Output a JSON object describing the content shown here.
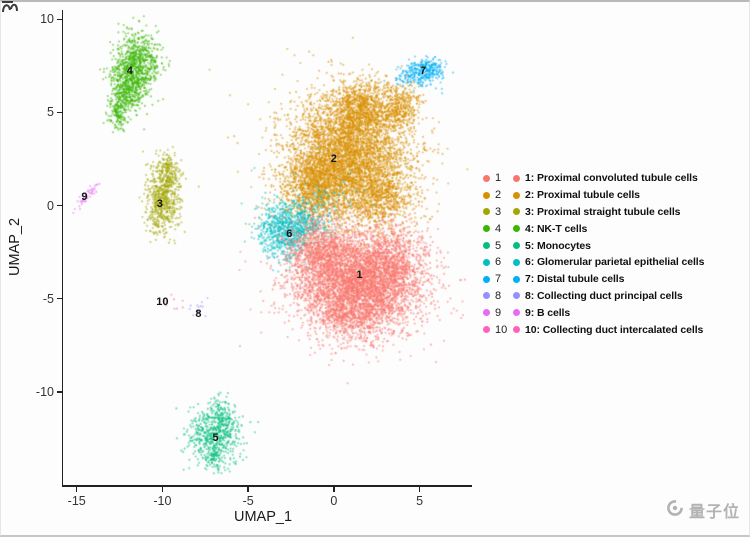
{
  "page": {
    "watermark": {
      "text": "量子位",
      "color": "#b3b3b3"
    }
  },
  "chart_data": {
    "type": "scatter",
    "title": "",
    "xlabel": "UMAP_1",
    "ylabel": "UMAP_2",
    "xlim": [
      -15.8,
      8.0
    ],
    "ylim": [
      -15.0,
      10.5
    ],
    "xticks": [
      -15,
      -10,
      -5,
      0,
      5
    ],
    "yticks": [
      10,
      5,
      0,
      -5,
      -10
    ],
    "grid": false,
    "legend_position": "right",
    "point_radius_px": 1.05,
    "point_alpha": 0.55,
    "axis_color": "#222222",
    "draw_order": [
      "2",
      "3",
      "4",
      "5",
      "7",
      "6",
      "1",
      "9",
      "8",
      "10"
    ],
    "clusters": [
      {
        "number": "1",
        "name": "Proximal convoluted tubule cells",
        "legend_label": "1: Proximal convoluted tubule cells",
        "color": "#F8766D",
        "label_pos": [
          1.5,
          -3.75
        ],
        "blobs": [
          {
            "x": 1.5,
            "y": -4.2,
            "sx": 1.8,
            "sy": 1.3,
            "n": 3800
          },
          {
            "x": -0.8,
            "y": -2.6,
            "sx": 1.0,
            "sy": 0.9,
            "n": 900
          },
          {
            "x": 3.3,
            "y": -3.0,
            "sx": 0.9,
            "sy": 1.0,
            "n": 700
          },
          {
            "x": 1.0,
            "y": -6.0,
            "sx": 1.2,
            "sy": 0.7,
            "n": 500
          },
          {
            "x": 1.3,
            "y": -4.0,
            "sx": 2.5,
            "sy": 1.8,
            "n": 450
          }
        ]
      },
      {
        "number": "2",
        "name": "Proximal tubule cells",
        "legend_label": "2: Proximal tubule cells",
        "color": "#D89000",
        "label_pos": [
          0.0,
          2.5
        ],
        "blobs": [
          {
            "x": 0.8,
            "y": 2.6,
            "sx": 1.7,
            "sy": 1.7,
            "n": 4200
          },
          {
            "x": -1.2,
            "y": 1.0,
            "sx": 0.9,
            "sy": 0.9,
            "n": 900
          },
          {
            "x": 1.6,
            "y": 5.3,
            "sx": 0.8,
            "sy": 0.7,
            "n": 700
          },
          {
            "x": 3.8,
            "y": 5.3,
            "sx": 0.6,
            "sy": 0.6,
            "n": 400
          },
          {
            "x": 2.8,
            "y": 0.3,
            "sx": 1.0,
            "sy": 0.8,
            "n": 600
          },
          {
            "x": 1.0,
            "y": 2.5,
            "sx": 2.4,
            "sy": 2.2,
            "n": 500
          }
        ]
      },
      {
        "number": "3",
        "name": "Proximal straight tubule cells",
        "legend_label": "3: Proximal straight tubule cells",
        "color": "#A3A500",
        "label_pos": [
          -10.15,
          0.1
        ],
        "blobs": [
          {
            "x": -10.0,
            "y": 0.3,
            "sx": 0.5,
            "sy": 0.9,
            "n": 600
          },
          {
            "x": -9.7,
            "y": 1.8,
            "sx": 0.35,
            "sy": 0.5,
            "n": 180
          }
        ]
      },
      {
        "number": "4",
        "name": "NK-T cells",
        "legend_label": "4: NK-T cells",
        "color": "#39B600",
        "label_pos": [
          -11.9,
          7.2
        ],
        "blobs": [
          {
            "x": -11.5,
            "y": 7.6,
            "sx": 0.65,
            "sy": 0.85,
            "n": 800
          },
          {
            "x": -12.1,
            "y": 6.2,
            "sx": 0.45,
            "sy": 0.7,
            "n": 350
          },
          {
            "x": -12.6,
            "y": 5.0,
            "sx": 0.3,
            "sy": 0.5,
            "n": 150
          }
        ]
      },
      {
        "number": "5",
        "name": "Monocytes",
        "legend_label": "5: Monocytes",
        "color": "#00BF7D",
        "label_pos": [
          -6.9,
          -12.5
        ],
        "blobs": [
          {
            "x": -6.9,
            "y": -12.3,
            "sx": 0.8,
            "sy": 0.75,
            "n": 550
          },
          {
            "x": -6.6,
            "y": -11.2,
            "sx": 0.3,
            "sy": 0.5,
            "n": 100
          },
          {
            "x": -7.0,
            "y": -13.5,
            "sx": 0.35,
            "sy": 0.4,
            "n": 90
          }
        ]
      },
      {
        "number": "6",
        "name": "Glomerular parietal epithelial cells",
        "legend_label": "6: Glomerular parietal epithelial cells",
        "color": "#00BFC4",
        "label_pos": [
          -2.6,
          -1.5
        ],
        "blobs": [
          {
            "x": -2.8,
            "y": -1.3,
            "sx": 0.85,
            "sy": 0.8,
            "n": 800
          },
          {
            "x": -1.4,
            "y": -1.0,
            "sx": 0.7,
            "sy": 0.6,
            "n": 150
          },
          {
            "x": -0.2,
            "y": 0.3,
            "sx": 1.2,
            "sy": 0.8,
            "n": 60
          }
        ]
      },
      {
        "number": "7",
        "name": "Distal tubule cells",
        "legend_label": "7: Distal tubule cells",
        "color": "#00B0F6",
        "label_pos": [
          5.2,
          7.2
        ],
        "blobs": [
          {
            "x": 5.3,
            "y": 7.25,
            "sx": 0.55,
            "sy": 0.33,
            "n": 300
          },
          {
            "x": 4.3,
            "y": 6.9,
            "sx": 0.5,
            "sy": 0.25,
            "n": 70
          }
        ]
      },
      {
        "number": "8",
        "name": "Collecting duct principal cells",
        "legend_label": "8: Collecting duct principal cells",
        "color": "#9590FF",
        "label_pos": [
          -7.9,
          -5.8
        ],
        "blobs": [
          {
            "x": -7.8,
            "y": -5.5,
            "sx": 0.22,
            "sy": 0.2,
            "n": 14
          }
        ]
      },
      {
        "number": "9",
        "name": "B cells",
        "legend_label": "9: B cells",
        "color": "#E76BF3",
        "label_pos": [
          -14.55,
          0.45
        ],
        "blobs": [
          {
            "x": -14.35,
            "y": 0.55,
            "sx": 0.45,
            "sy": 0.12,
            "n": 45,
            "angle": 45
          }
        ]
      },
      {
        "number": "10",
        "name": "Collecting duct intercalated cells",
        "legend_label": "10: Collecting duct intercalated cells",
        "color": "#FF62BC",
        "label_pos": [
          -10.0,
          -5.2
        ],
        "blobs": [
          {
            "x": -9.4,
            "y": -5.2,
            "sx": 0.3,
            "sy": 0.25,
            "n": 10
          }
        ]
      }
    ]
  }
}
